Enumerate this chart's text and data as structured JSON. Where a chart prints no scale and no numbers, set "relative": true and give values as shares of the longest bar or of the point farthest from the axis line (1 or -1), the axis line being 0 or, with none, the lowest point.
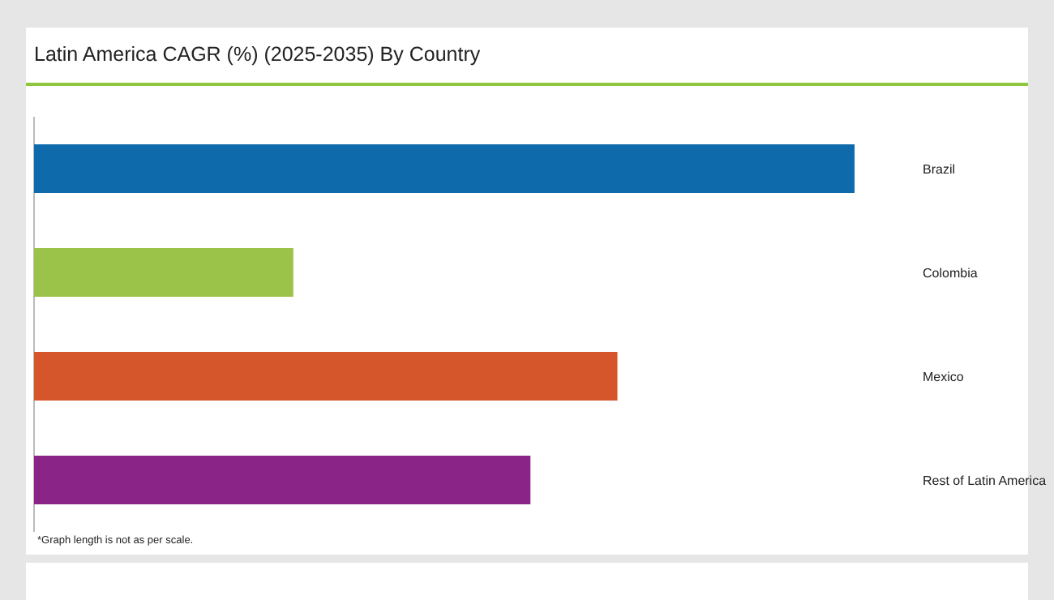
{
  "chart_data": {
    "type": "bar",
    "orientation": "horizontal",
    "relative": true,
    "title": "Latin America CAGR (%) (2025-2035) By Country",
    "categories": [
      "Brazil",
      "Colombia",
      "Mexico",
      "Rest of Latin America"
    ],
    "values": [
      1,
      0.316,
      0.711,
      0.605
    ],
    "colors": [
      "#0e6aab",
      "#9bc34a",
      "#d5562b",
      "#8b2487"
    ],
    "annotations": [
      "*Graph length is not as per scale."
    ],
    "legend": false
  }
}
